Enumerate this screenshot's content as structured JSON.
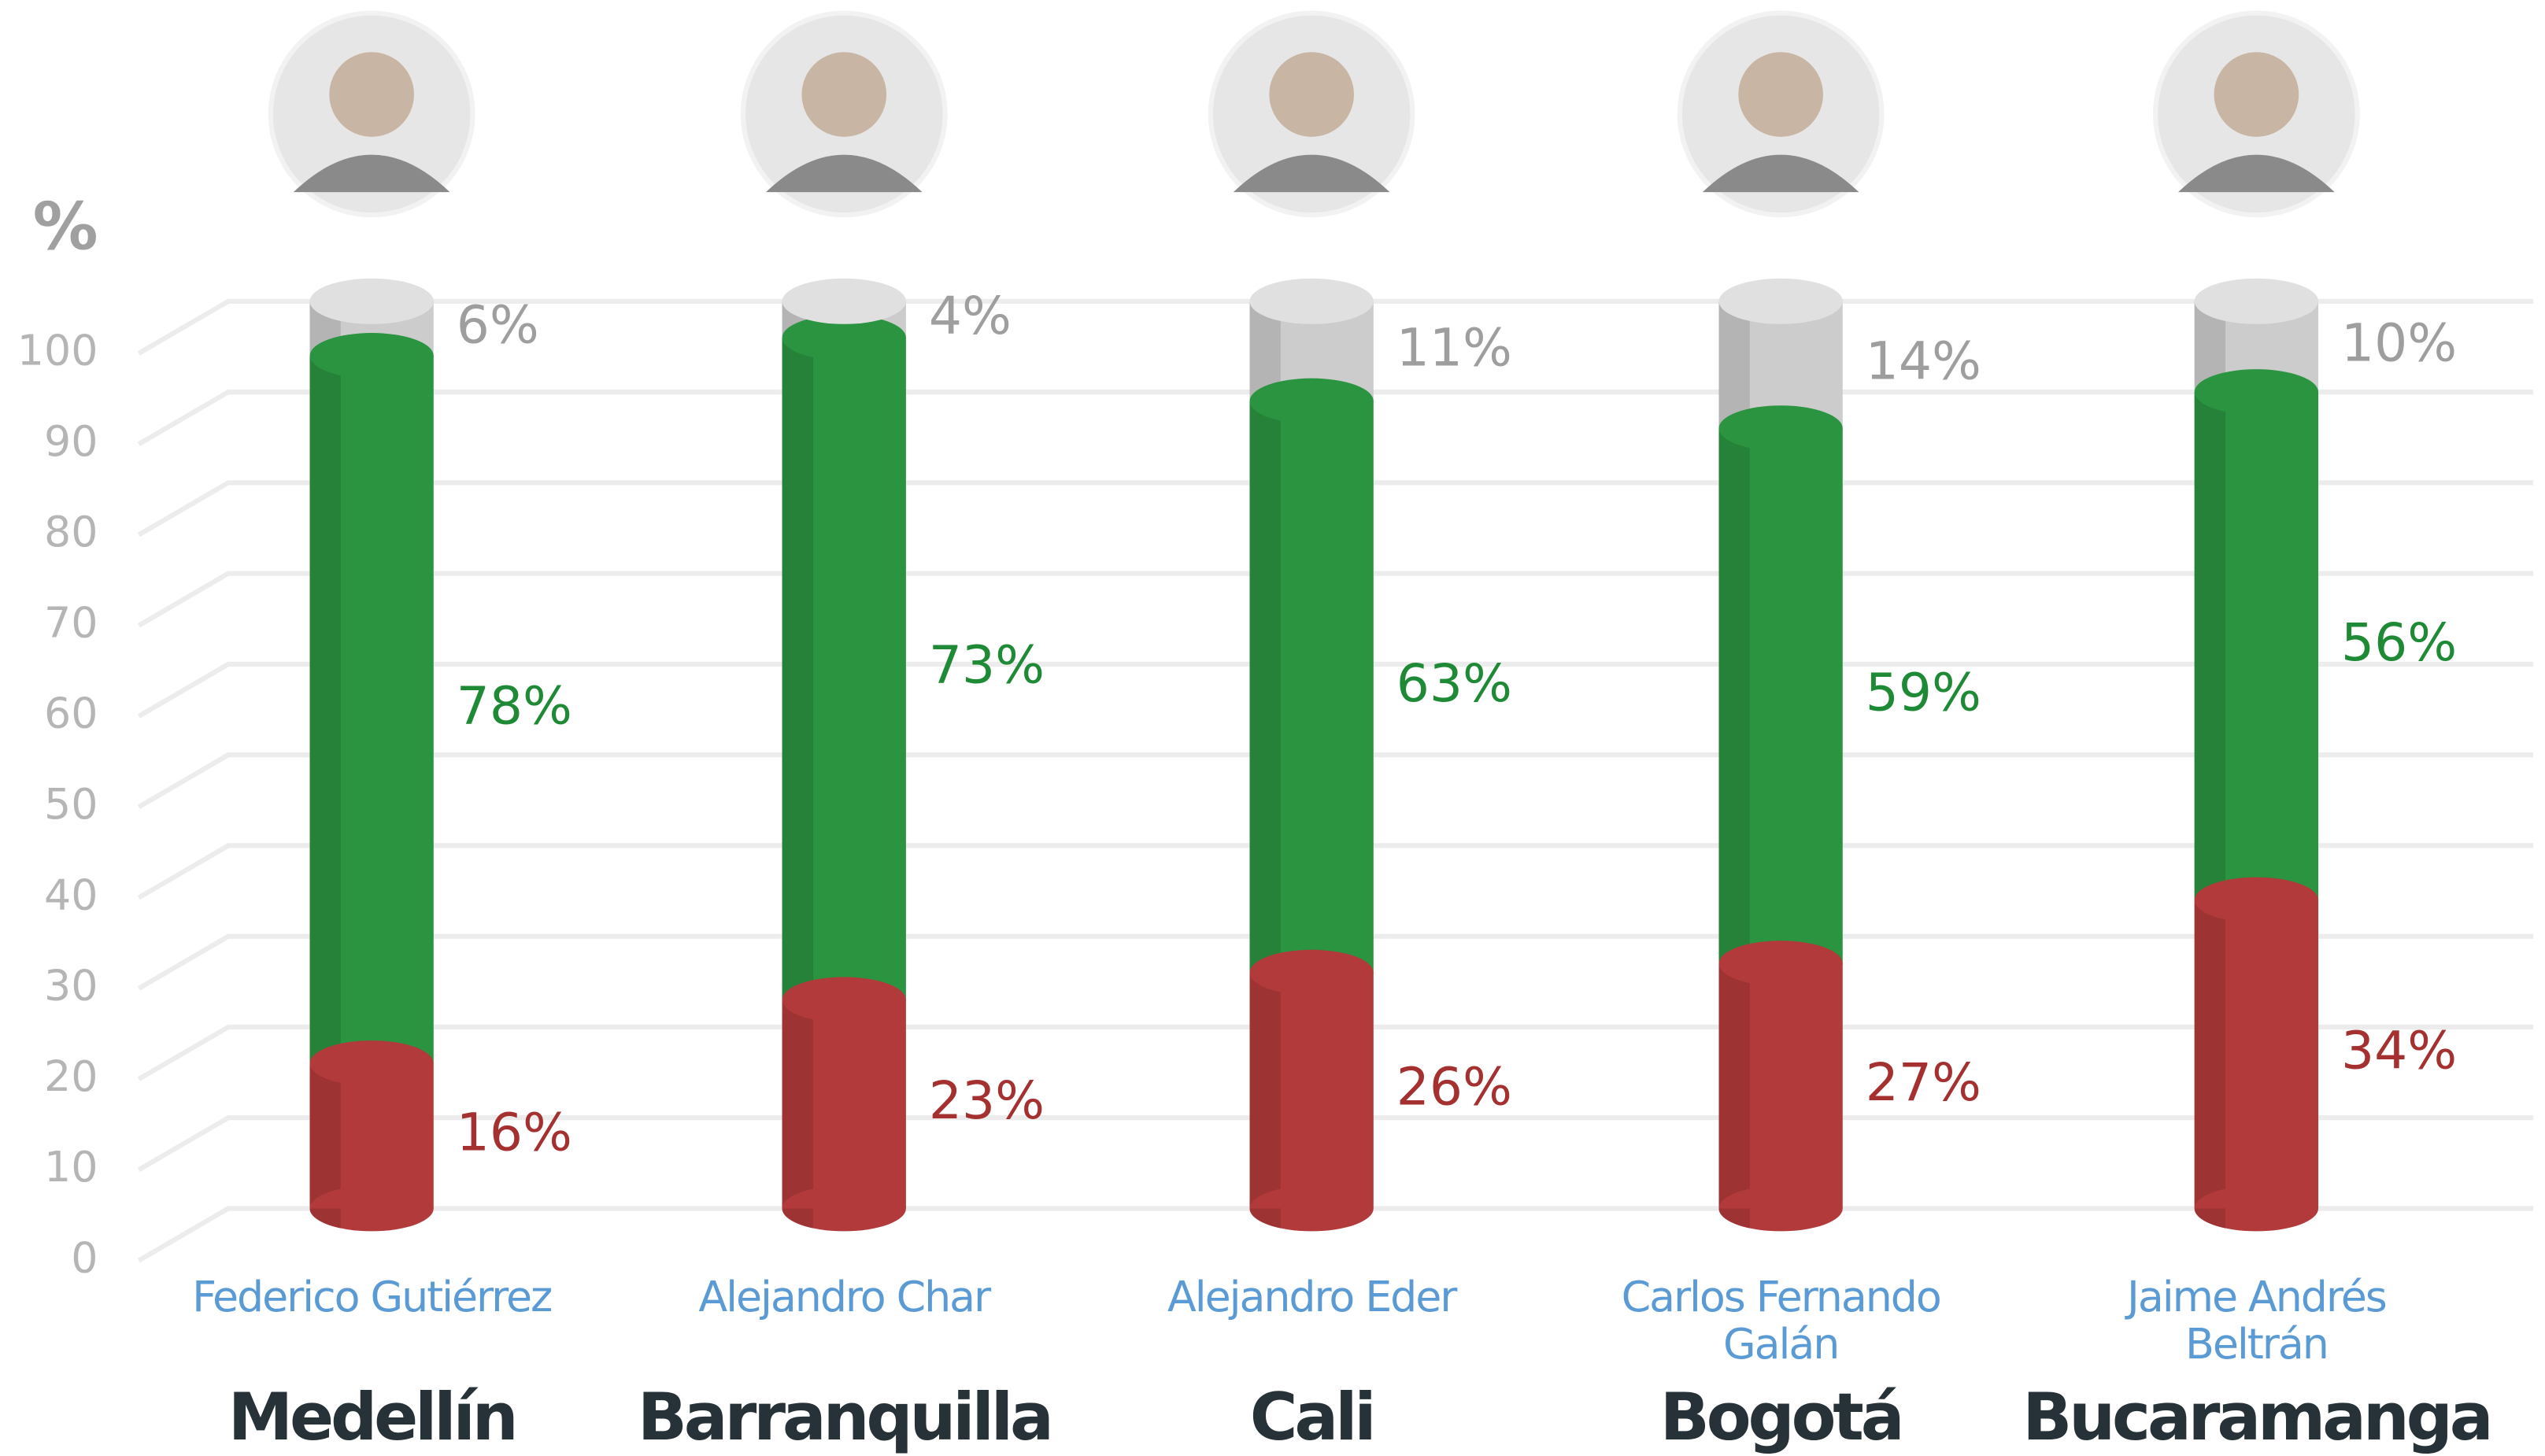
{
  "chart_data": {
    "type": "stacked_bar",
    "y_axis_label": "%",
    "categories": [
      "Medellín",
      "Barranquilla",
      "Cali",
      "Bogotá",
      "Bucaramanga"
    ],
    "candidates": [
      [
        "Federico Gutiérrez"
      ],
      [
        "Alejandro Char"
      ],
      [
        "Alejandro Eder"
      ],
      [
        "Carlos Fernando",
        "Galán"
      ],
      [
        "Jaime Andrés",
        "Beltrán"
      ]
    ],
    "series": [
      {
        "color": "#b23a3a",
        "label_color": "#a53030",
        "values": [
          16,
          23,
          26,
          27,
          34
        ],
        "value_labels": [
          "16%",
          "23%",
          "26%",
          "27%",
          "34%"
        ]
      },
      {
        "color": "#2a9440",
        "label_color": "#1f8a35",
        "values": [
          78,
          73,
          63,
          59,
          56
        ],
        "value_labels": [
          "78%",
          "73%",
          "63%",
          "59%",
          "56%"
        ]
      },
      {
        "color": "#cccccc",
        "label_color": "#9e9e9e",
        "values": [
          6,
          4,
          11,
          14,
          10
        ],
        "value_labels": [
          "6%",
          "4%",
          "11%",
          "14%",
          "10%"
        ]
      }
    ],
    "ylim": [
      0,
      100
    ],
    "yticks": [
      0,
      10,
      20,
      30,
      40,
      50,
      60,
      70,
      80,
      90,
      100
    ],
    "grid": true
  }
}
